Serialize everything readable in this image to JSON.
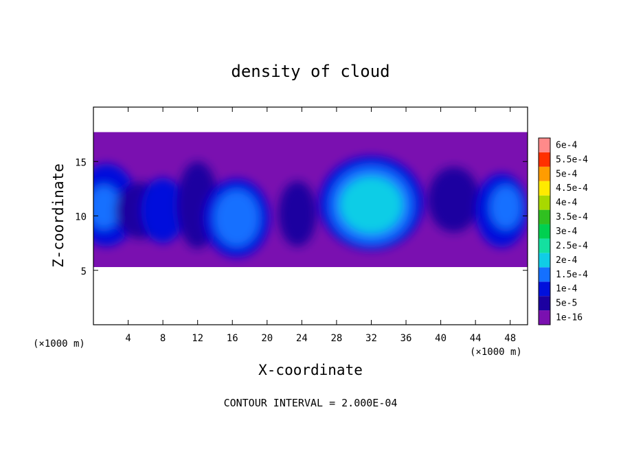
{
  "chart_data": {
    "type": "heatmap",
    "title": "density of cloud",
    "xlabel": "X-coordinate",
    "ylabel": "Z-coordinate",
    "x_unit": "(×1000 m)",
    "y_unit": "(×1000 m)",
    "xlim": [
      0,
      50
    ],
    "ylim": [
      0,
      20
    ],
    "x_ticks": [
      4,
      8,
      12,
      16,
      20,
      24,
      28,
      32,
      36,
      40,
      44,
      48
    ],
    "y_ticks": [
      5,
      10,
      15
    ],
    "grid": false,
    "footer": "CONTOUR INTERVAL = 2.000E-04",
    "colorbar": {
      "position": "right",
      "levels": [
        {
          "label": "1e-16",
          "color": "#7a10b0"
        },
        {
          "label": "5e-5",
          "color": "#1c00a0"
        },
        {
          "label": "1e-4",
          "color": "#0010dc"
        },
        {
          "label": "1.5e-4",
          "color": "#1470ff"
        },
        {
          "label": "2e-4",
          "color": "#10cde6"
        },
        {
          "label": "2.5e-4",
          "color": "#14e0a0"
        },
        {
          "label": "3e-4",
          "color": "#00d050"
        },
        {
          "label": "3.5e-4",
          "color": "#30c020"
        },
        {
          "label": "4e-4",
          "color": "#a8d800"
        },
        {
          "label": "4.5e-4",
          "color": "#ffea00"
        },
        {
          "label": "5e-4",
          "color": "#ff9c00"
        },
        {
          "label": "5.5e-4",
          "color": "#ff3000"
        },
        {
          "label": "6e-4",
          "color": "#ff8a8a"
        }
      ]
    },
    "cloud_layer_z": [
      5.3,
      17.7
    ],
    "cells": [
      {
        "x": 1.5,
        "z": 11.0,
        "rx": 3.5,
        "rz": 3.8,
        "value": 0.0001
      },
      {
        "x": 1.2,
        "z": 10.8,
        "rx": 1.8,
        "rz": 2.0,
        "value": 0.00015
      },
      {
        "x": 5.5,
        "z": 10.5,
        "rx": 3.0,
        "rz": 2.6,
        "value": 5e-05
      },
      {
        "x": 8.0,
        "z": 10.5,
        "rx": 2.5,
        "rz": 3.0,
        "value": 0.0001
      },
      {
        "x": 12.0,
        "z": 11.0,
        "rx": 2.4,
        "rz": 4.0,
        "value": 5e-05
      },
      {
        "x": 16.5,
        "z": 9.8,
        "rx": 3.8,
        "rz": 3.6,
        "value": 0.0001
      },
      {
        "x": 16.5,
        "z": 9.8,
        "rx": 2.6,
        "rz": 2.6,
        "value": 0.00015
      },
      {
        "x": 23.5,
        "z": 10.2,
        "rx": 2.2,
        "rz": 3.0,
        "value": 5e-05
      },
      {
        "x": 32.0,
        "z": 11.2,
        "rx": 6.0,
        "rz": 4.3,
        "value": 0.0001
      },
      {
        "x": 32.0,
        "z": 11.0,
        "rx": 4.8,
        "rz": 3.6,
        "value": 0.00015
      },
      {
        "x": 32.0,
        "z": 11.0,
        "rx": 3.6,
        "rz": 2.6,
        "value": 0.0002
      },
      {
        "x": 41.5,
        "z": 11.5,
        "rx": 3.0,
        "rz": 3.0,
        "value": 5e-05
      },
      {
        "x": 47.0,
        "z": 10.5,
        "rx": 3.0,
        "rz": 3.4,
        "value": 0.0001
      },
      {
        "x": 47.5,
        "z": 10.8,
        "rx": 1.8,
        "rz": 2.0,
        "value": 0.00015
      }
    ]
  }
}
